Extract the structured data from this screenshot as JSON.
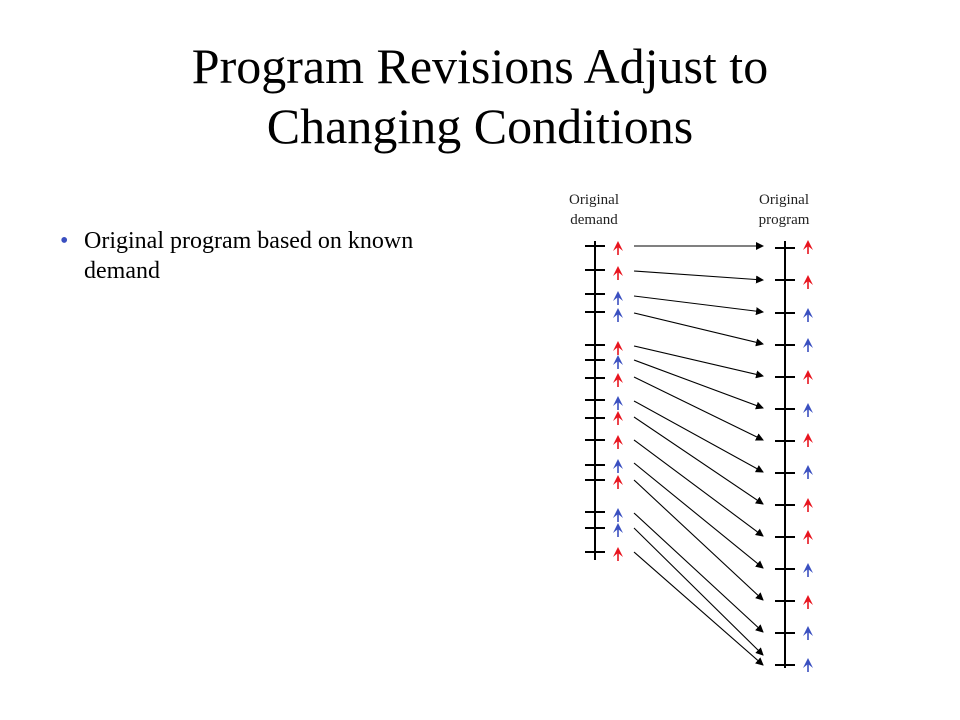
{
  "slide": {
    "title_line1": "Program Revisions Adjust to",
    "title_line2": "Changing Conditions",
    "bullets": [
      "Original program based on known demand"
    ]
  },
  "diagram": {
    "demand_label_line1": "Original",
    "demand_label_line2": "demand",
    "program_label_line1": "Original",
    "program_label_line2": "program",
    "colors": {
      "red": "#e8141e",
      "blue": "#3a4fc0",
      "axis": "#000000"
    },
    "demand_arrivals": [
      "red",
      "red",
      "blue",
      "blue",
      "red",
      "blue",
      "red",
      "blue",
      "red",
      "red",
      "blue",
      "red",
      "blue",
      "blue",
      "red"
    ],
    "program_slots": [
      "red",
      "red",
      "blue",
      "blue",
      "red",
      "blue",
      "red",
      "blue",
      "red",
      "red",
      "blue",
      "red",
      "blue",
      "blue"
    ]
  }
}
